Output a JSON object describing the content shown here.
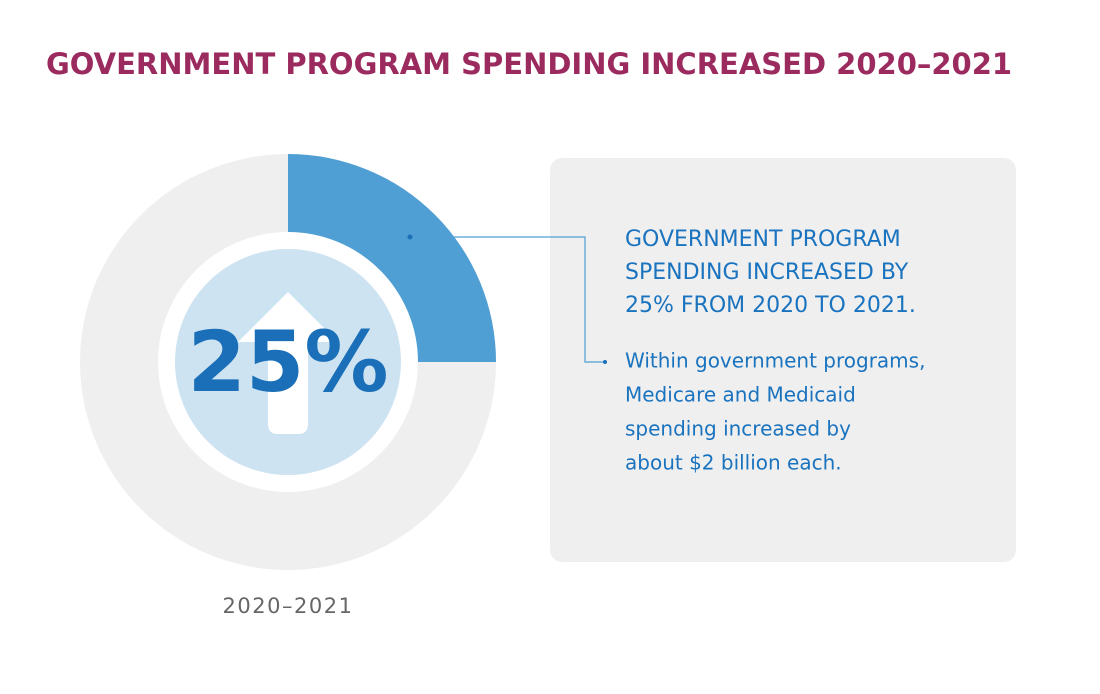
{
  "chart_data": {
    "type": "pie",
    "title": "GOVERNMENT PROGRAM SPENDING INCREASED 2020–2021",
    "categories": [
      "2020–2021"
    ],
    "values": [
      25
    ],
    "value_labels": [
      "25%"
    ],
    "color": "#4f9fd4",
    "annotations": {
      "heading": [
        "GOVERNMENT PROGRAM",
        "SPENDING INCREASED BY",
        "25% FROM 2020 TO 2021."
      ],
      "body": [
        "Within government programs,",
        "Medicare and Medicaid",
        "spending increased by",
        "about $2 billion each."
      ]
    }
  }
}
